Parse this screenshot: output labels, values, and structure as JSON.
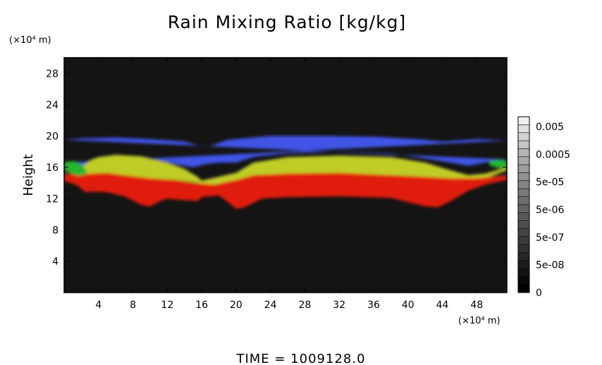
{
  "chart_data": {
    "type": "heatmap",
    "title": "Rain Mixing Ratio [kg/kg]",
    "ylabel": "Height",
    "x_unit": "(×10⁴ m)",
    "y_unit": "(×10⁴ m)",
    "footer": "TIME  =  1009128.0",
    "xlim": [
      0,
      51.5
    ],
    "ylim": [
      0,
      30
    ],
    "x_ticks": [
      4,
      8,
      12,
      16,
      20,
      24,
      28,
      32,
      36,
      40,
      44,
      48
    ],
    "y_ticks": [
      4,
      8,
      12,
      16,
      20,
      24,
      28
    ],
    "background_color": "#141414",
    "colorbar": {
      "labels": [
        "0.005",
        "0.0005",
        "5e-05",
        "5e-06",
        "5e-07",
        "5e-08",
        "0"
      ],
      "colors": [
        "#f0f0f0",
        "#e0e0e0",
        "#d2d2d2",
        "#c4c4c4",
        "#b6b6b6",
        "#a8a8a8",
        "#9c9c9c",
        "#909090",
        "#848484",
        "#797979",
        "#6e6e6e",
        "#636363",
        "#585858",
        "#4e4e4e",
        "#444444",
        "#3a3a3a",
        "#303030",
        "#262626",
        "#1c1c1c",
        "#121212",
        "#080808",
        "#000000"
      ]
    },
    "regions": [
      {
        "name": "blue",
        "color": "#3f55e6",
        "upper": [
          [
            0,
            19.5
          ],
          [
            2,
            19.7
          ],
          [
            6,
            19.8
          ],
          [
            10,
            19.6
          ],
          [
            14,
            19.3
          ],
          [
            15.5,
            18.8
          ],
          [
            17,
            18.7
          ],
          [
            19,
            19.5
          ],
          [
            24,
            20.0
          ],
          [
            30,
            20.0
          ],
          [
            36,
            19.9
          ],
          [
            41,
            19.6
          ],
          [
            44,
            19.3
          ],
          [
            48,
            19.6
          ],
          [
            51.5,
            19.4
          ]
        ],
        "lower": [
          [
            0,
            16.6
          ],
          [
            2,
            16.0
          ],
          [
            4,
            17.2
          ],
          [
            6,
            17.6
          ],
          [
            10,
            17.2
          ],
          [
            13,
            16.4
          ],
          [
            15,
            16.0
          ],
          [
            16.5,
            16.4
          ],
          [
            18,
            16.6
          ],
          [
            20,
            16.6
          ],
          [
            22,
            17.3
          ],
          [
            26,
            17.8
          ],
          [
            32,
            18.0
          ],
          [
            38,
            17.8
          ],
          [
            42,
            17.1
          ],
          [
            45,
            16.6
          ],
          [
            47,
            16.2
          ],
          [
            49,
            16.6
          ],
          [
            51.5,
            17.0
          ]
        ]
      },
      {
        "name": "yellow",
        "color": "#bfcc25",
        "upper": [
          [
            2,
            16.0
          ],
          [
            3,
            16.9
          ],
          [
            4,
            17.3
          ],
          [
            6,
            17.6
          ],
          [
            9,
            17.4
          ],
          [
            12,
            16.6
          ],
          [
            14,
            15.8
          ],
          [
            15.5,
            14.8
          ],
          [
            16,
            14.3
          ],
          [
            20,
            15.3
          ],
          [
            22,
            16.6
          ],
          [
            26,
            17.3
          ],
          [
            32,
            17.5
          ],
          [
            38,
            17.3
          ],
          [
            42,
            16.6
          ],
          [
            45,
            15.6
          ],
          [
            47,
            15.0
          ],
          [
            49,
            15.2
          ],
          [
            51.5,
            16.0
          ]
        ],
        "lower": [
          [
            51.5,
            15.6
          ],
          [
            49,
            14.6
          ],
          [
            47,
            14.2
          ],
          [
            44,
            14.3
          ],
          [
            40,
            14.8
          ],
          [
            36,
            15.0
          ],
          [
            30,
            15.0
          ],
          [
            24,
            14.9
          ],
          [
            21,
            14.6
          ],
          [
            19,
            14.1
          ],
          [
            17,
            13.7
          ],
          [
            15.5,
            14.0
          ],
          [
            13,
            14.4
          ],
          [
            10,
            14.5
          ],
          [
            7,
            14.9
          ],
          [
            5,
            15.1
          ],
          [
            3.5,
            15.2
          ],
          [
            2,
            15.0
          ]
        ]
      },
      {
        "name": "red",
        "color": "#e01a10",
        "upper": [
          [
            0,
            15.2
          ],
          [
            1.5,
            15.0
          ],
          [
            3,
            15.2
          ],
          [
            5,
            15.3
          ],
          [
            7,
            15.0
          ],
          [
            10,
            14.6
          ],
          [
            13,
            14.4
          ],
          [
            15,
            14.0
          ],
          [
            17.5,
            13.8
          ],
          [
            20,
            14.4
          ],
          [
            22,
            15.0
          ],
          [
            26,
            15.2
          ],
          [
            32,
            15.3
          ],
          [
            38,
            15.0
          ],
          [
            42,
            14.8
          ],
          [
            45,
            14.6
          ],
          [
            48,
            14.6
          ],
          [
            51.5,
            15.0
          ]
        ],
        "lower": [
          [
            51.5,
            14.4
          ],
          [
            49,
            13.8
          ],
          [
            47,
            13.0
          ],
          [
            45,
            11.7
          ],
          [
            43.5,
            10.9
          ],
          [
            42,
            11.0
          ],
          [
            38,
            12.1
          ],
          [
            32,
            12.3
          ],
          [
            26,
            12.2
          ],
          [
            23,
            12.0
          ],
          [
            21,
            10.9
          ],
          [
            20,
            10.7
          ],
          [
            19,
            11.6
          ],
          [
            18,
            12.4
          ],
          [
            16,
            12.2
          ],
          [
            15.5,
            11.7
          ],
          [
            14,
            11.8
          ],
          [
            12,
            12.0
          ],
          [
            11,
            11.6
          ],
          [
            10,
            11.0
          ],
          [
            9,
            11.2
          ],
          [
            7,
            12.3
          ],
          [
            5,
            12.8
          ],
          [
            3.5,
            12.9
          ],
          [
            2.5,
            12.8
          ],
          [
            1.5,
            13.7
          ],
          [
            0.5,
            14.1
          ],
          [
            0,
            14.2
          ]
        ]
      },
      {
        "name": "green-left",
        "color": "#27b52e",
        "upper": [
          [
            0,
            16.7
          ],
          [
            1.2,
            16.8
          ],
          [
            2.0,
            16.4
          ],
          [
            2.6,
            15.6
          ]
        ],
        "lower": [
          [
            2.6,
            15.2
          ],
          [
            1.8,
            14.9
          ],
          [
            1.0,
            15.1
          ],
          [
            0,
            15.6
          ]
        ]
      },
      {
        "name": "green-right",
        "color": "#27b52e",
        "upper": [
          [
            49.5,
            16.8
          ],
          [
            50.6,
            17.0
          ],
          [
            51.5,
            16.8
          ]
        ],
        "lower": [
          [
            51.5,
            15.9
          ],
          [
            50.6,
            15.9
          ],
          [
            49.5,
            16.2
          ]
        ]
      }
    ]
  }
}
